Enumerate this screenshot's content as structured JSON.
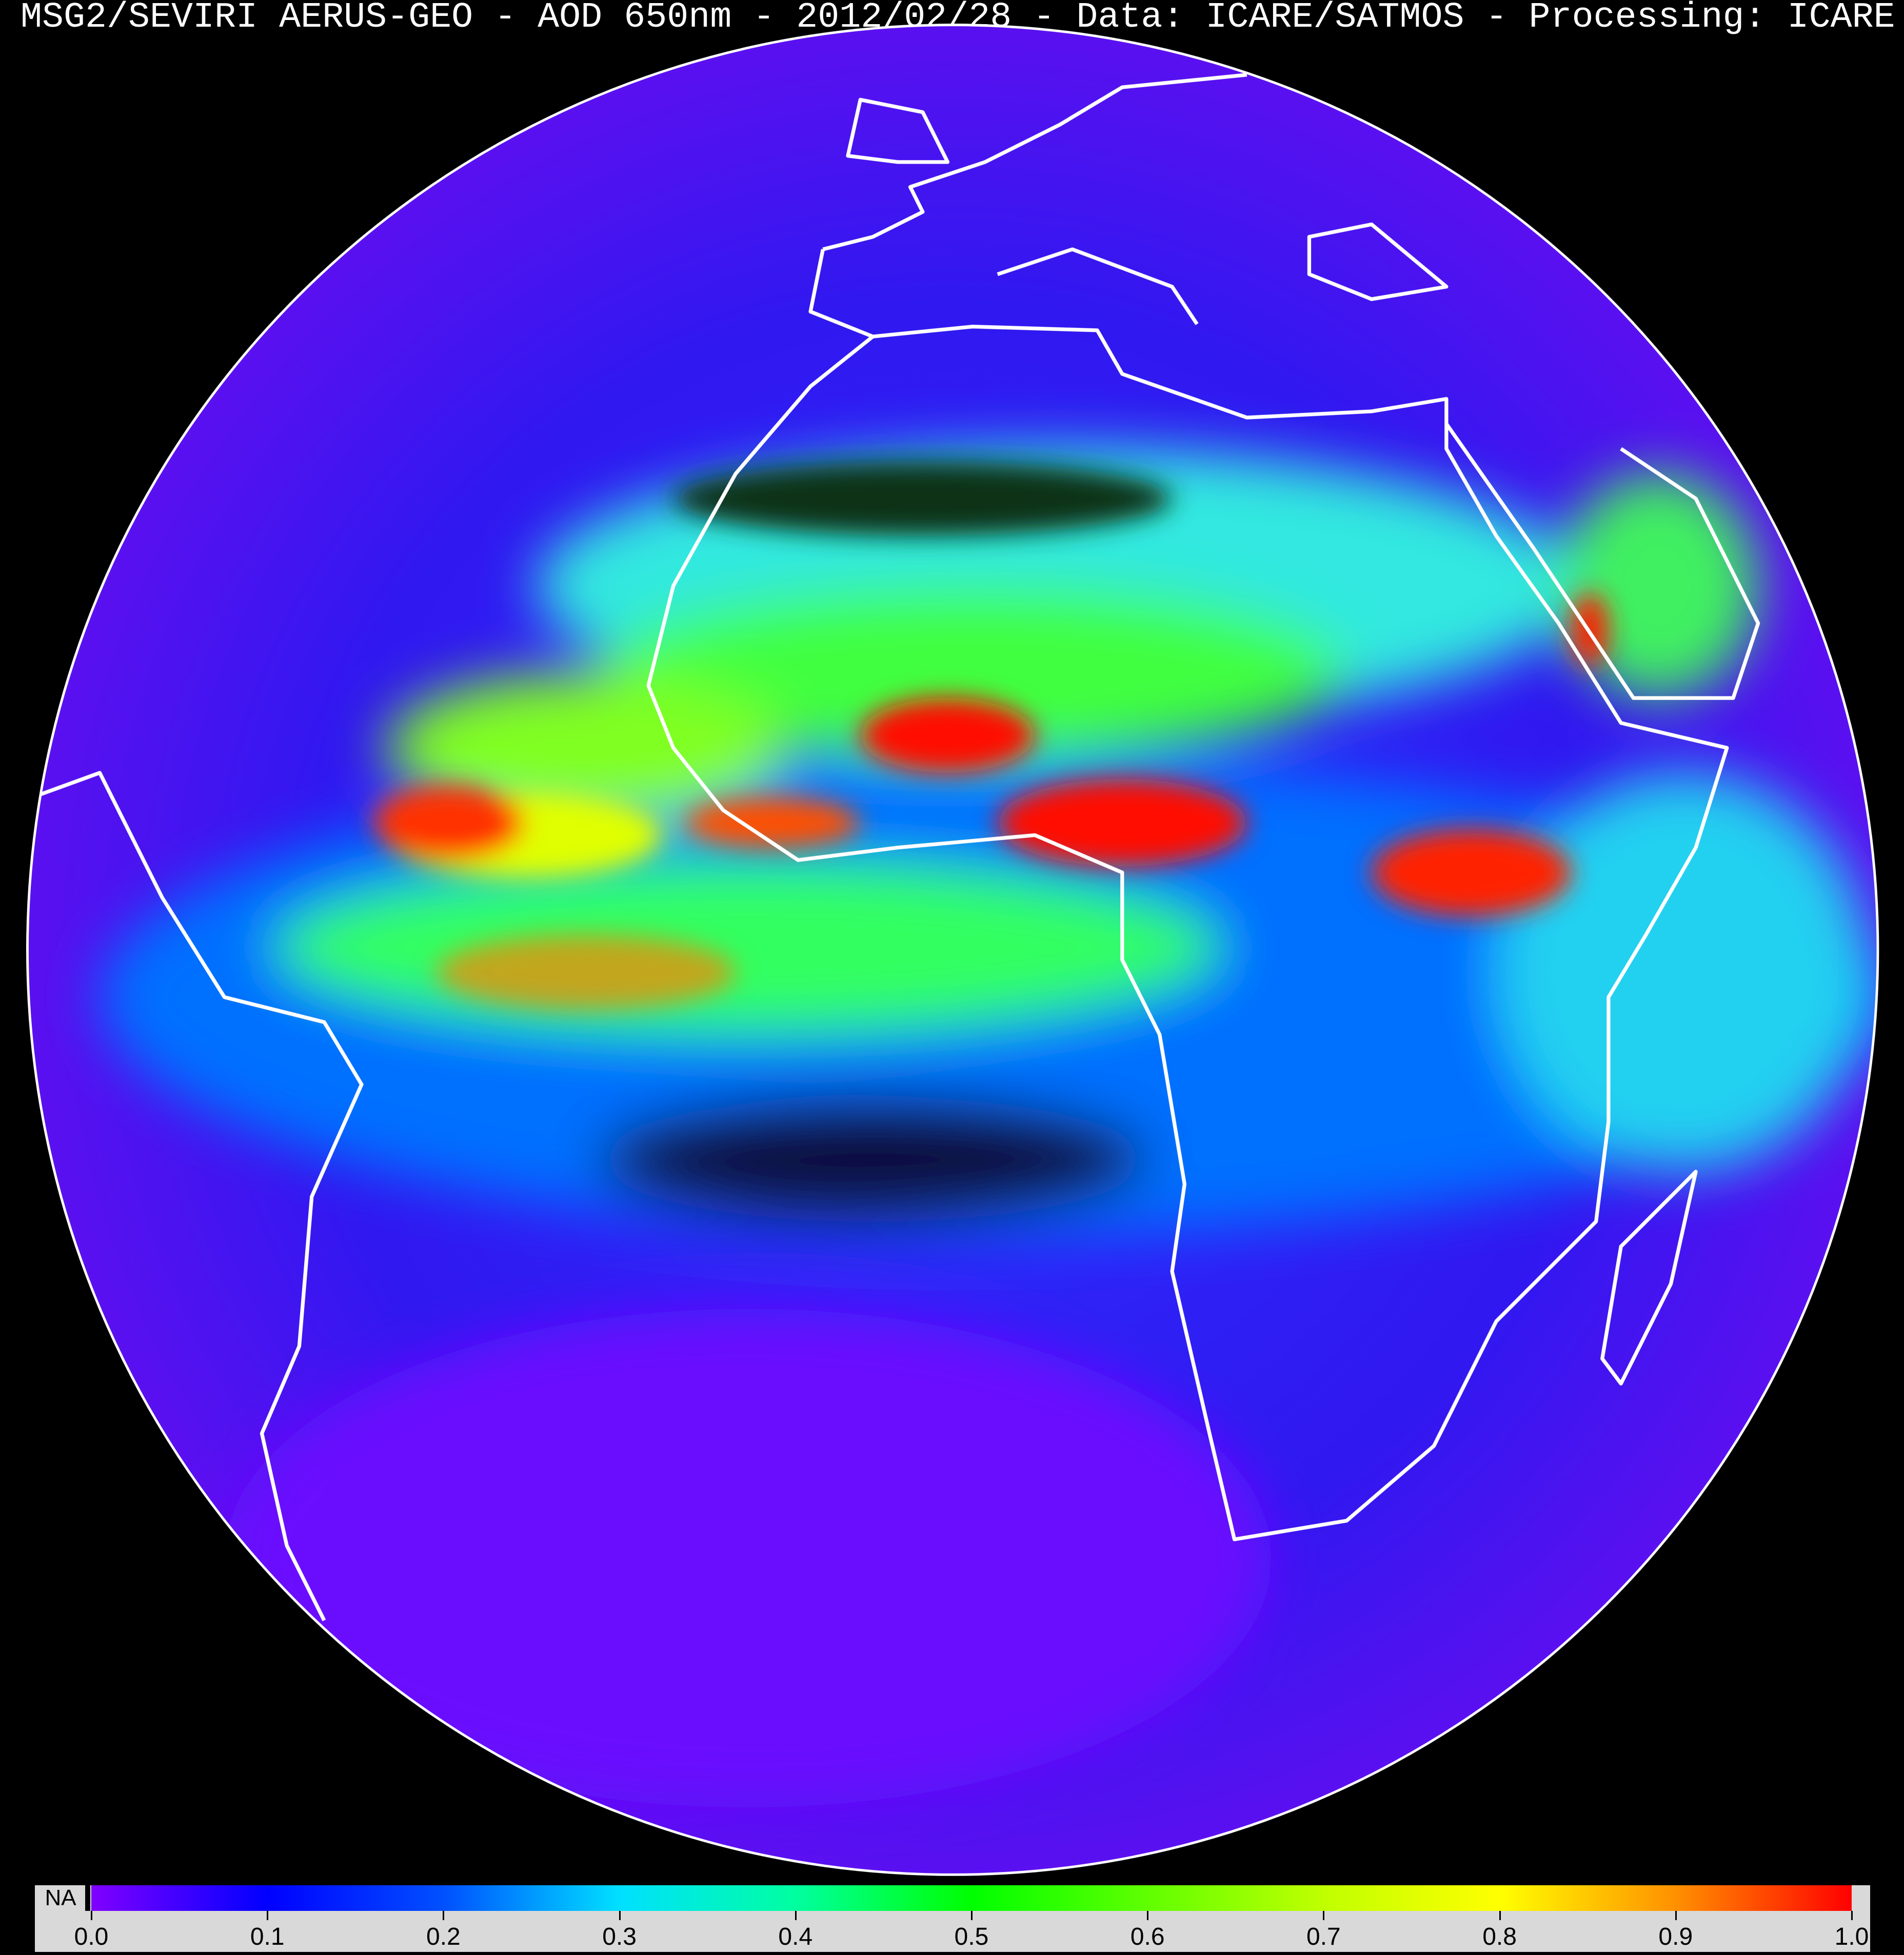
{
  "title": "MSG2/SEVIRI AERUS-GEO - AOD 650nm - 2012/02/28 - Data: ICARE/SATMOS - Processing: ICARE",
  "map": {
    "projection": "geostationary full disk",
    "coastlines_color": "#ffffff",
    "background_color": "#000000"
  },
  "colorbar": {
    "na_label": "NA",
    "na_color": "#000000",
    "min": 0.0,
    "max": 1.0,
    "ticks": [
      "0.0",
      "0.1",
      "0.2",
      "0.3",
      "0.4",
      "0.5",
      "0.6",
      "0.7",
      "0.8",
      "0.9",
      "1.0"
    ],
    "stops": [
      {
        "value": 0.0,
        "color": "#8000ff"
      },
      {
        "value": 0.1,
        "color": "#0000ff"
      },
      {
        "value": 0.2,
        "color": "#0050ff"
      },
      {
        "value": 0.3,
        "color": "#00e0ff"
      },
      {
        "value": 0.4,
        "color": "#00ffa0"
      },
      {
        "value": 0.5,
        "color": "#00ff00"
      },
      {
        "value": 0.6,
        "color": "#60ff00"
      },
      {
        "value": 0.7,
        "color": "#c0ff00"
      },
      {
        "value": 0.8,
        "color": "#ffff00"
      },
      {
        "value": 0.9,
        "color": "#ff9000"
      },
      {
        "value": 1.0,
        "color": "#ff0000"
      }
    ]
  }
}
